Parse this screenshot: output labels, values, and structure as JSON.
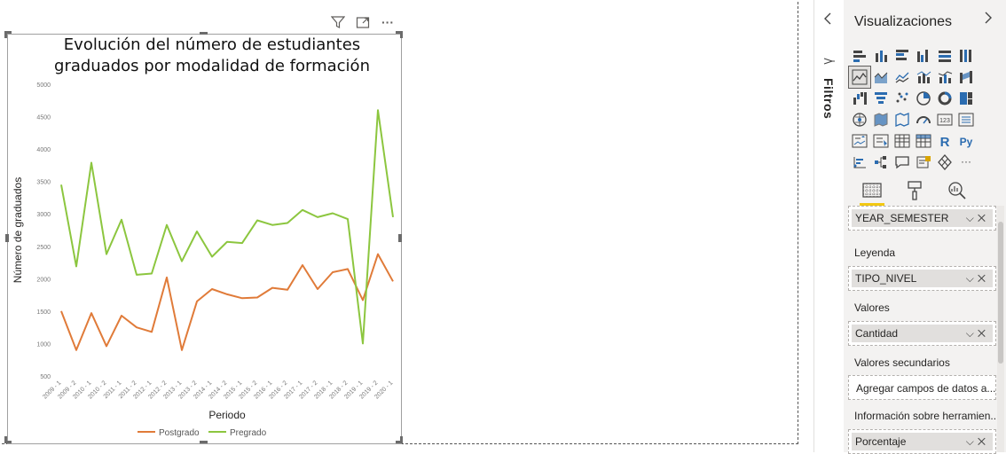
{
  "visual_header": {
    "icons": [
      "filter-icon",
      "focus-mode-icon",
      "more-options-icon"
    ],
    "more_label": "···"
  },
  "chart_data": {
    "type": "line",
    "title": "Evolución del número de estudiantes graduados por modalidad de formación",
    "title_line1": "Evolución del número de estudiantes",
    "title_line2": "graduados por modalidad de formación",
    "xlabel": "Periodo",
    "ylabel": "Número de graduados",
    "ylim": [
      500,
      5000
    ],
    "yticks": [
      500,
      1000,
      1500,
      2000,
      2500,
      3000,
      3500,
      4000,
      4500,
      5000
    ],
    "categories": [
      "2009 - 1",
      "2009 - 2",
      "2010 - 1",
      "2010 - 2",
      "2011 - 1",
      "2011 - 2",
      "2012 - 1",
      "2012 - 2",
      "2013 - 1",
      "2013 - 2",
      "2014 - 1",
      "2014 - 2",
      "2015 - 1",
      "2015 - 2",
      "2016 - 1",
      "2016 - 2",
      "2017 - 1",
      "2017 - 2",
      "2018 - 1",
      "2018 - 2",
      "2019 - 1",
      "2019 - 2",
      "2020 - 1"
    ],
    "series": [
      {
        "name": "Postgrado",
        "color": "#e07b39",
        "values": [
          1500,
          900,
          1470,
          960,
          1430,
          1250,
          1180,
          2020,
          900,
          1650,
          1840,
          1760,
          1700,
          1710,
          1860,
          1830,
          2210,
          1840,
          2100,
          2150,
          1670,
          2380,
          1960
        ]
      },
      {
        "name": "Pregrado",
        "color": "#8cc63f",
        "values": [
          3450,
          2190,
          3790,
          2380,
          2910,
          2060,
          2080,
          2830,
          2270,
          2730,
          2340,
          2570,
          2550,
          2900,
          2830,
          2860,
          3060,
          2950,
          3010,
          2920,
          1000,
          4600,
          2950
        ]
      }
    ],
    "legend_position": "bottom",
    "grid": false
  },
  "filters_pane": {
    "label": "Filtros",
    "collapse_icon": "chevron-left-icon"
  },
  "visualizations_pane": {
    "title": "Visualizaciones",
    "expand_icon": "chevron-right-icon",
    "tabs": [
      "fields-tab-icon",
      "format-tab-icon",
      "analytics-tab-icon"
    ],
    "wells": {
      "axis_field": "YEAR_SEMESTER",
      "legend_label": "Leyenda",
      "legend_field": "TIPO_NIVEL",
      "values_label": "Valores",
      "values_field": "Cantidad",
      "secondary_label": "Valores secundarios",
      "secondary_placeholder": "Agregar campos de datos a...",
      "tooltips_label": "Información sobre herramien...",
      "tooltips_field": "Porcentaje"
    }
  }
}
